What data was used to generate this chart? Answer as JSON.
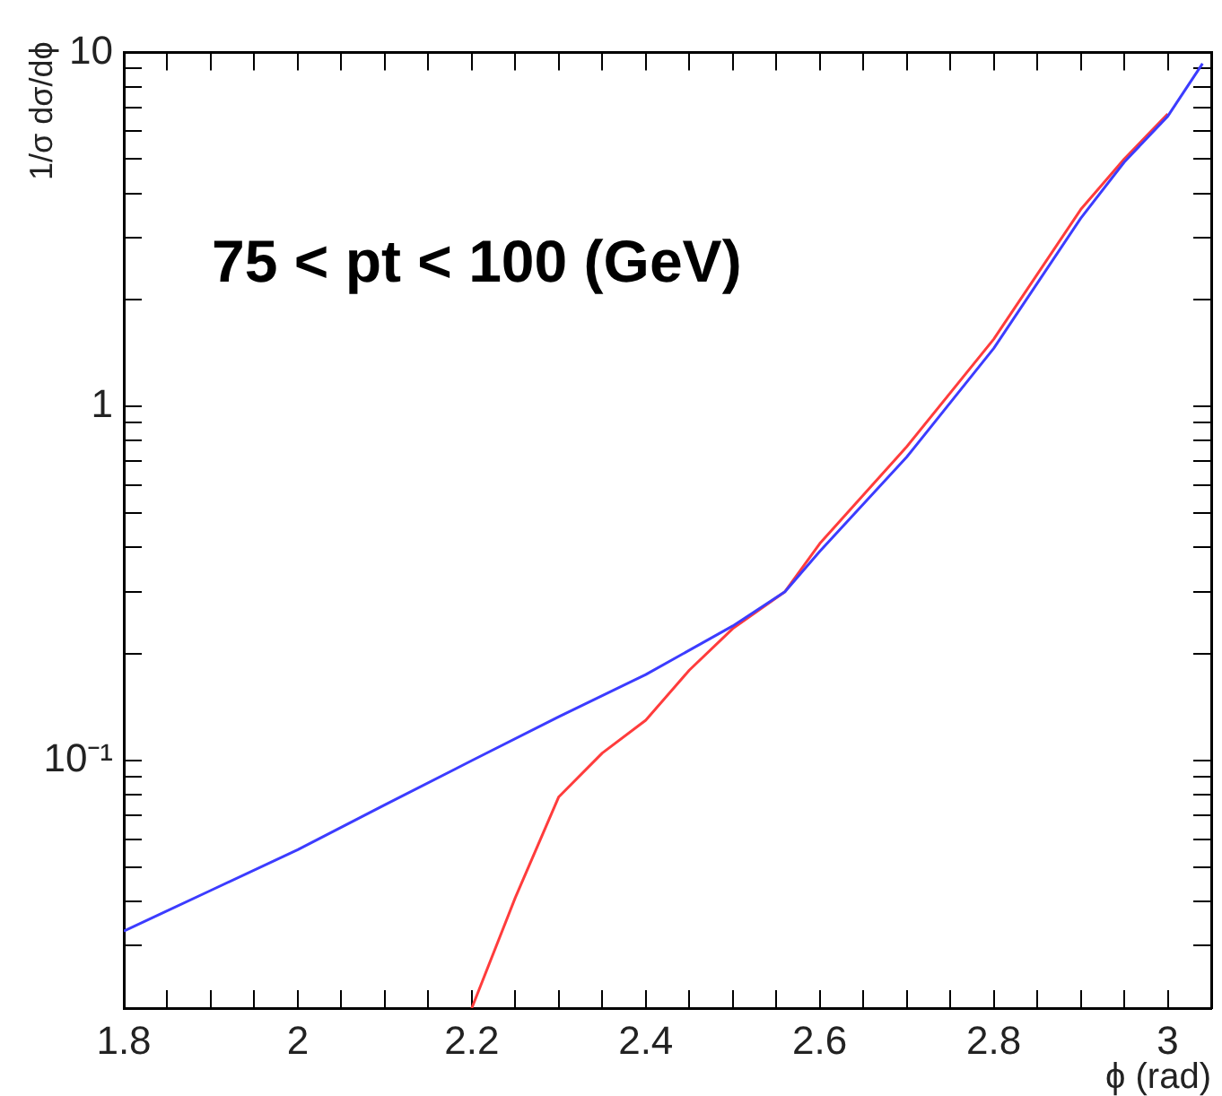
{
  "chart_data": {
    "type": "line",
    "xlabel": "ϕ (rad)",
    "ylabel": "1/σ dσ/dϕ",
    "annotations": [
      "75 < pt < 100 (GeV)"
    ],
    "log": "y",
    "grid": false,
    "legend": false,
    "marker": "none",
    "line_style": "solid",
    "xlim": [
      1.8,
      3.05
    ],
    "xticks": [
      1.8,
      {
        "value": 1.85,
        "label": null
      },
      {
        "value": 1.9,
        "label": null
      },
      {
        "value": 1.95,
        "label": null
      },
      2,
      {
        "value": 2.05,
        "label": null
      },
      {
        "value": 2.1,
        "label": null
      },
      {
        "value": 2.15,
        "label": null
      },
      2.2,
      {
        "value": 2.25,
        "label": null
      },
      {
        "value": 2.3,
        "label": null
      },
      {
        "value": 2.35,
        "label": null
      },
      2.4,
      {
        "value": 2.45,
        "label": null
      },
      {
        "value": 2.5,
        "label": null
      },
      {
        "value": 2.55,
        "label": null
      },
      2.6,
      {
        "value": 2.65,
        "label": null
      },
      {
        "value": 2.7,
        "label": null
      },
      {
        "value": 2.75,
        "label": null
      },
      2.8,
      {
        "value": 2.85,
        "label": null
      },
      {
        "value": 2.9,
        "label": null
      },
      {
        "value": 2.95,
        "label": null
      },
      3
    ],
    "ylim": [
      0.02,
      10
    ],
    "yticks": [
      {
        "value": 0.02,
        "label": null
      },
      {
        "value": 0.03,
        "label": null
      },
      {
        "value": 0.04,
        "label": null
      },
      {
        "value": 0.05,
        "label": null
      },
      {
        "value": 0.06,
        "label": null
      },
      {
        "value": 0.07,
        "label": null
      },
      {
        "value": 0.08,
        "label": null
      },
      {
        "value": 0.09,
        "label": null
      },
      {
        "value": 0.1,
        "label": "10⁻¹"
      },
      {
        "value": 0.2,
        "label": null
      },
      {
        "value": 0.3,
        "label": null
      },
      {
        "value": 0.4,
        "label": null
      },
      {
        "value": 0.5,
        "label": null
      },
      {
        "value": 0.6,
        "label": null
      },
      {
        "value": 0.7,
        "label": null
      },
      {
        "value": 0.8,
        "label": null
      },
      {
        "value": 0.9,
        "label": null
      },
      1,
      {
        "value": 2,
        "label": null
      },
      {
        "value": 3,
        "label": null
      },
      {
        "value": 4,
        "label": null
      },
      {
        "value": 5,
        "label": null
      },
      {
        "value": 6,
        "label": null
      },
      {
        "value": 7,
        "label": null
      },
      {
        "value": 8,
        "label": null
      },
      {
        "value": 9,
        "label": null
      },
      10
    ],
    "series": [
      {
        "color": "#3c3cff",
        "x": [
          1.8,
          1.9,
          2.0,
          2.1,
          2.2,
          2.3,
          2.4,
          2.5,
          2.56,
          2.6,
          2.7,
          2.8,
          2.9,
          2.95,
          3.0,
          3.04
        ],
        "values": [
          0.033,
          0.043,
          0.056,
          0.075,
          0.1,
          0.133,
          0.175,
          0.24,
          0.3,
          0.39,
          0.72,
          1.46,
          3.4,
          4.9,
          6.6,
          9.3
        ]
      },
      {
        "color": "#ff3c3c",
        "x": [
          2.2,
          2.25,
          2.3,
          2.35,
          2.4,
          2.45,
          2.5,
          2.56,
          2.6,
          2.7,
          2.8,
          2.9,
          2.95,
          3.0
        ],
        "values": [
          0.02,
          0.041,
          0.079,
          0.105,
          0.13,
          0.18,
          0.236,
          0.3,
          0.41,
          0.77,
          1.55,
          3.6,
          5.0,
          6.7
        ]
      }
    ]
  }
}
